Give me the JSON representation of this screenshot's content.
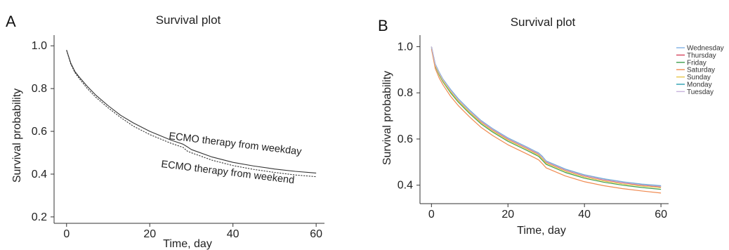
{
  "chart_data": [
    {
      "panel_label": "A",
      "type": "line",
      "title": "Survival plot",
      "xlabel": "Time, day",
      "ylabel": "Survival probability",
      "xlim": [
        -3,
        62
      ],
      "ylim": [
        0.17,
        1.05
      ],
      "xticks": [
        0,
        20,
        40,
        60
      ],
      "yticks": [
        0.2,
        0.4,
        0.6,
        0.8,
        1.0
      ],
      "ytick_labels": [
        "0.2",
        "0.4",
        "0.6",
        "0.8",
        "1.0"
      ],
      "grid": false,
      "x": [
        0,
        1,
        2,
        3,
        5,
        7,
        10,
        13,
        16,
        20,
        25,
        28,
        29,
        30,
        35,
        40,
        45,
        50,
        55,
        60
      ],
      "series": [
        {
          "name": "ECMO therapy from weekday",
          "style": "solid",
          "color": "#333333",
          "values": [
            0.98,
            0.92,
            0.88,
            0.855,
            0.81,
            0.77,
            0.72,
            0.675,
            0.64,
            0.6,
            0.56,
            0.54,
            0.528,
            0.515,
            0.48,
            0.455,
            0.438,
            0.424,
            0.413,
            0.405
          ]
        },
        {
          "name": "ECMO therapy from weekend",
          "style": "dashed",
          "color": "#333333",
          "values": [
            0.98,
            0.915,
            0.875,
            0.848,
            0.8,
            0.76,
            0.71,
            0.665,
            0.625,
            0.585,
            0.545,
            0.525,
            0.508,
            0.5,
            0.465,
            0.44,
            0.422,
            0.408,
            0.396,
            0.388
          ]
        }
      ]
    },
    {
      "panel_label": "B",
      "type": "line",
      "title": "Survival plot",
      "xlabel": "Time, day",
      "ylabel": "Survival probability",
      "xlim": [
        -3,
        62
      ],
      "ylim": [
        0.32,
        1.05
      ],
      "xticks": [
        0,
        20,
        40,
        60
      ],
      "yticks": [
        0.4,
        0.6,
        0.8,
        1.0
      ],
      "ytick_labels": [
        "0.4",
        "0.6",
        "0.8",
        "1.0"
      ],
      "grid": false,
      "legend_position": "right",
      "x": [
        0,
        1,
        2,
        3,
        5,
        7,
        10,
        13,
        16,
        20,
        25,
        28,
        29,
        30,
        35,
        40,
        45,
        50,
        55,
        60
      ],
      "series": [
        {
          "name": "Wednesday",
          "color": "#7fb2e5",
          "values": [
            1.0,
            0.925,
            0.89,
            0.86,
            0.815,
            0.775,
            0.725,
            0.68,
            0.645,
            0.605,
            0.565,
            0.54,
            0.525,
            0.505,
            0.47,
            0.445,
            0.428,
            0.415,
            0.405,
            0.398
          ]
        },
        {
          "name": "Thursday",
          "color": "#d6455f",
          "values": [
            1.0,
            0.92,
            0.885,
            0.855,
            0.81,
            0.77,
            0.72,
            0.675,
            0.64,
            0.6,
            0.56,
            0.535,
            0.52,
            0.5,
            0.465,
            0.44,
            0.423,
            0.41,
            0.4,
            0.393
          ]
        },
        {
          "name": "Friday",
          "color": "#3f9e4f",
          "values": [
            0.995,
            0.915,
            0.878,
            0.848,
            0.8,
            0.76,
            0.71,
            0.665,
            0.63,
            0.59,
            0.55,
            0.525,
            0.508,
            0.49,
            0.455,
            0.43,
            0.413,
            0.4,
            0.39,
            0.382
          ]
        },
        {
          "name": "Saturday",
          "color": "#f08a50",
          "values": [
            0.99,
            0.905,
            0.865,
            0.835,
            0.785,
            0.745,
            0.695,
            0.65,
            0.615,
            0.575,
            0.535,
            0.51,
            0.493,
            0.475,
            0.44,
            0.415,
            0.398,
            0.385,
            0.375,
            0.366
          ]
        },
        {
          "name": "Sunday",
          "color": "#e8c84a",
          "values": [
            0.998,
            0.918,
            0.882,
            0.852,
            0.805,
            0.765,
            0.715,
            0.67,
            0.635,
            0.595,
            0.555,
            0.53,
            0.514,
            0.495,
            0.46,
            0.435,
            0.418,
            0.405,
            0.396,
            0.389
          ]
        },
        {
          "name": "Monday",
          "color": "#2a9fb0",
          "values": [
            1.0,
            0.923,
            0.888,
            0.858,
            0.812,
            0.772,
            0.722,
            0.678,
            0.643,
            0.603,
            0.563,
            0.538,
            0.522,
            0.503,
            0.468,
            0.443,
            0.426,
            0.413,
            0.403,
            0.396
          ]
        },
        {
          "name": "Tuesday",
          "color": "#c8b4dc",
          "values": [
            1.0,
            0.922,
            0.887,
            0.857,
            0.811,
            0.771,
            0.721,
            0.677,
            0.642,
            0.602,
            0.562,
            0.537,
            0.521,
            0.502,
            0.467,
            0.442,
            0.425,
            0.412,
            0.402,
            0.395
          ]
        }
      ]
    }
  ]
}
